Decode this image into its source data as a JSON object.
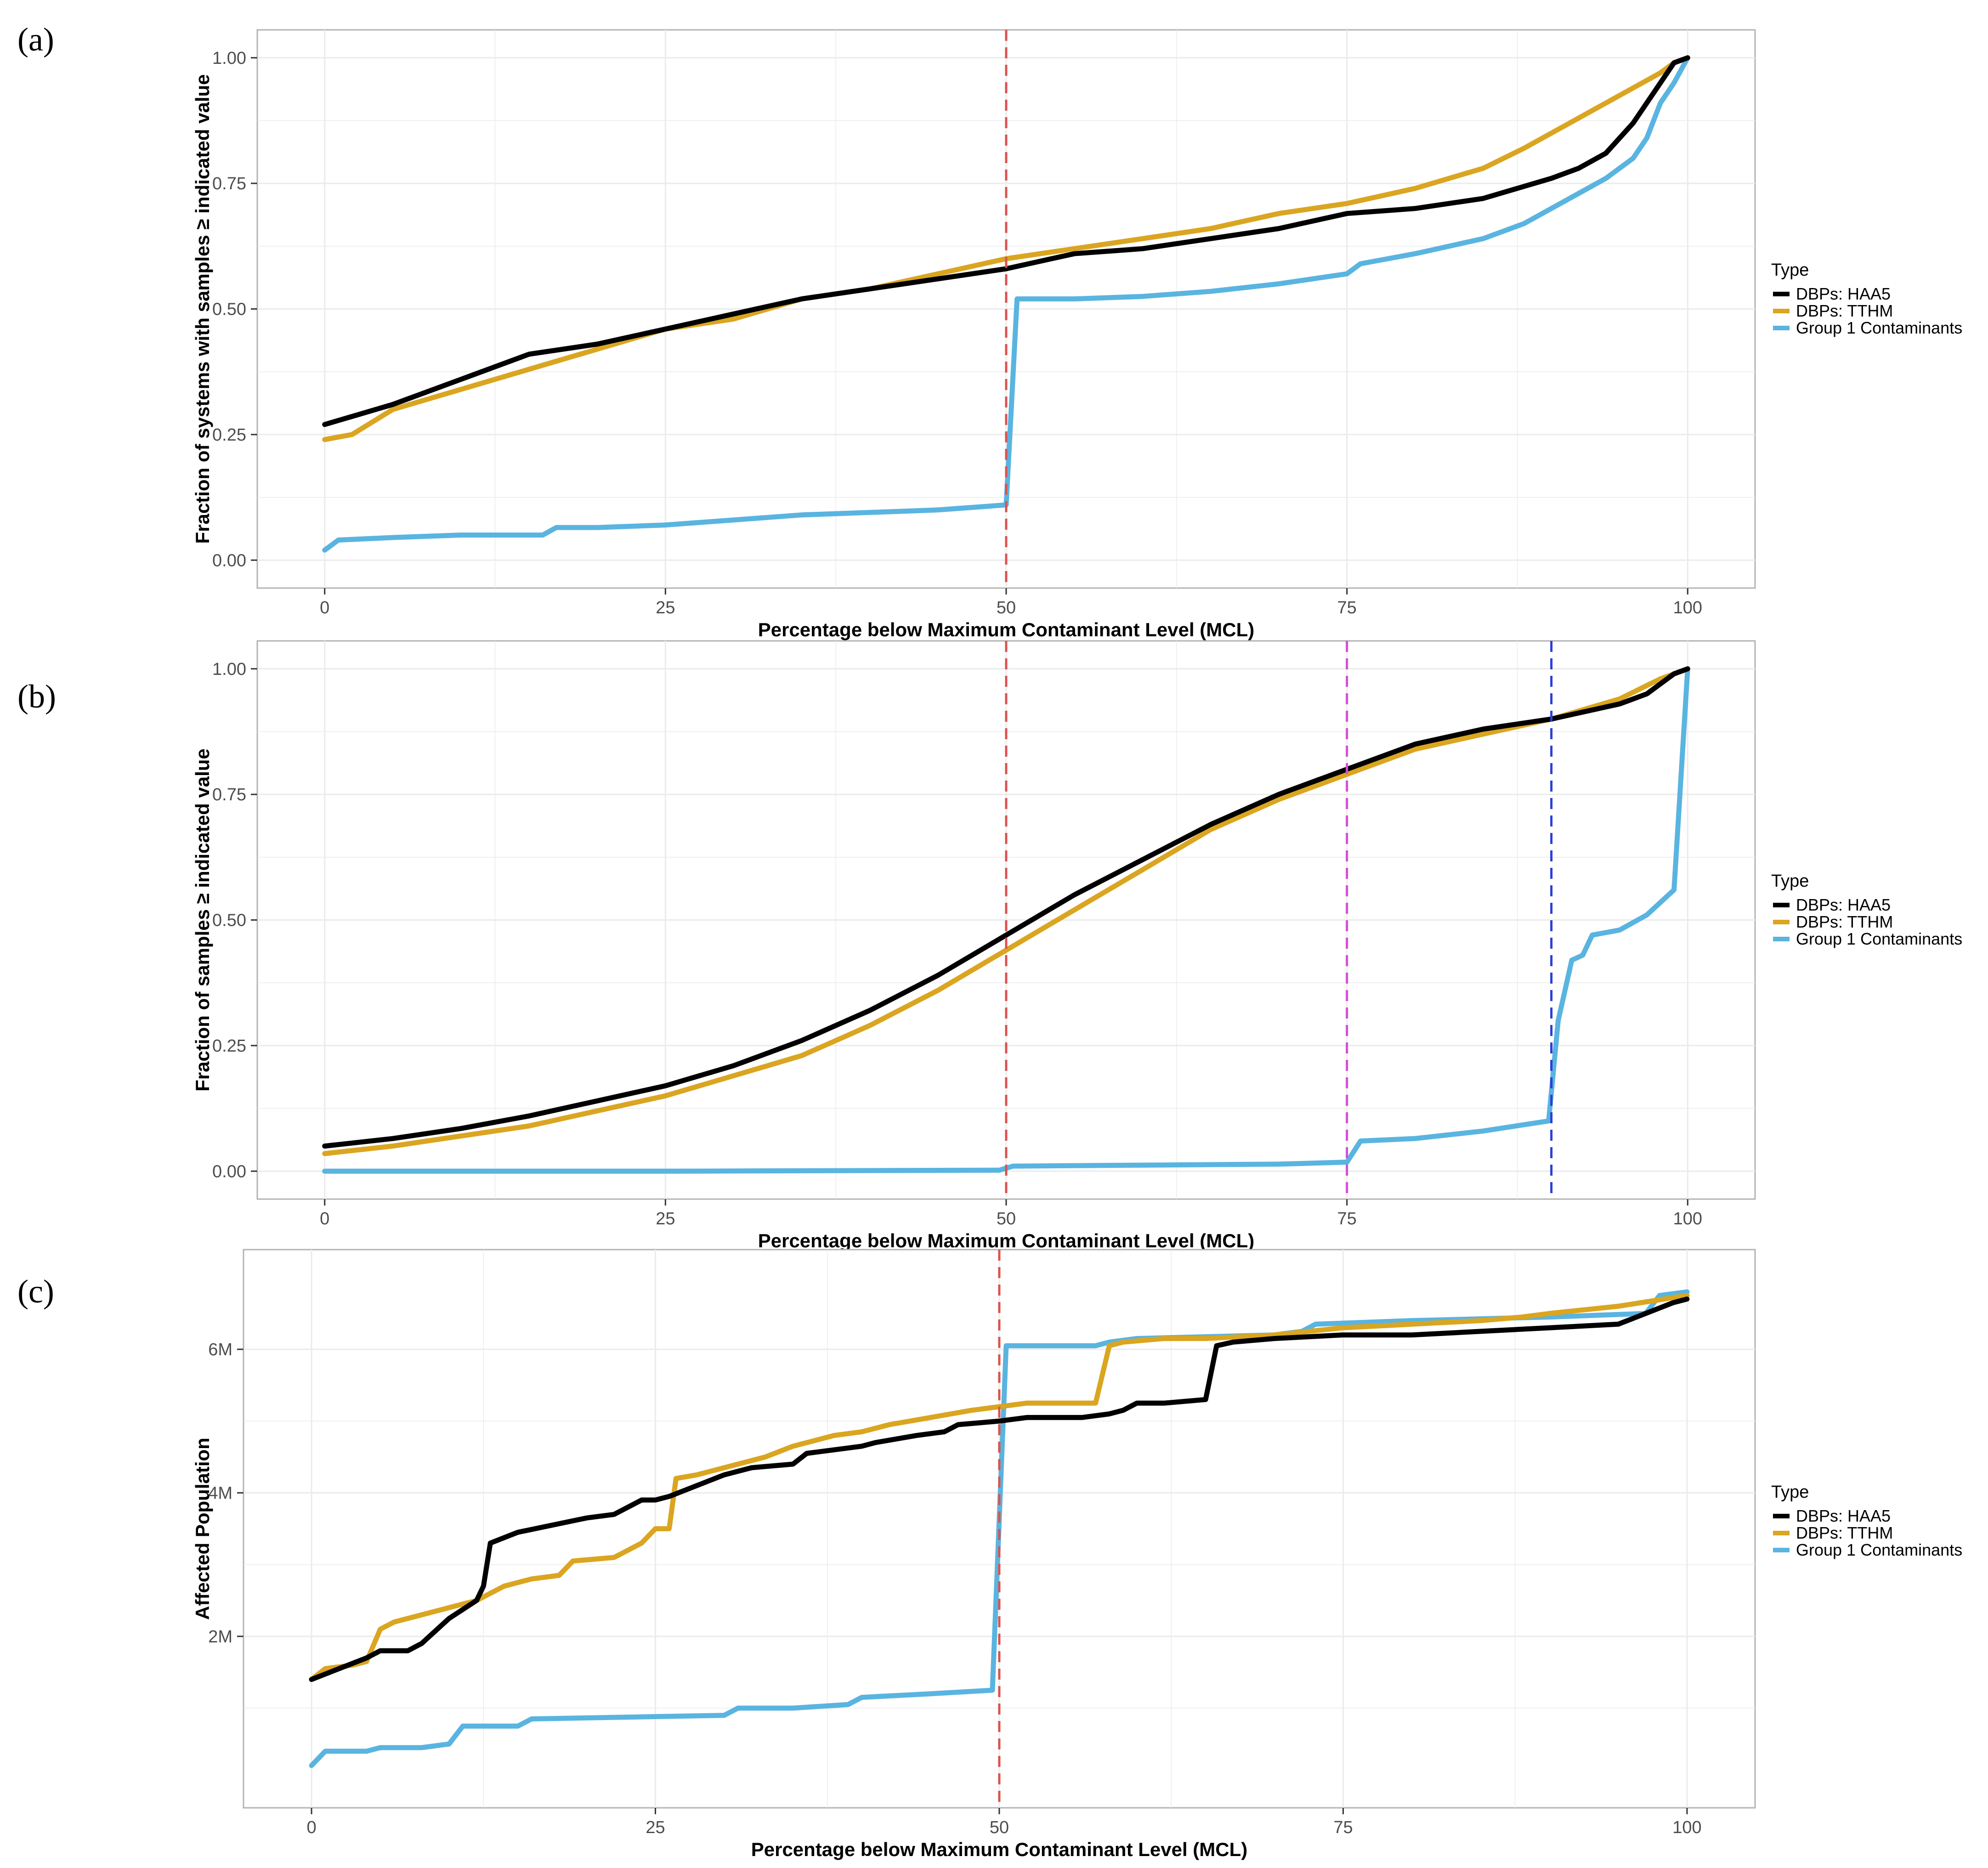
{
  "colors": {
    "haa5": "#000000",
    "tthm": "#DAA520",
    "group1": "#5AB4E0",
    "ref_red": "#D9534F",
    "ref_magenta": "#D44FD6",
    "ref_blue": "#2B3FD6",
    "grid": "#EBEBEB",
    "panel_border": "#B3B3B3"
  },
  "legend": {
    "title": "Type",
    "entries": [
      "DBPs: HAA5",
      "DBPs: TTHM",
      "Group 1 Contaminants"
    ]
  },
  "chart_data": [
    {
      "type": "line",
      "panel_label": "(a)",
      "xlabel": "Percentage below Maximum Contaminant Level (MCL)",
      "ylabel": "Fraction of systems with samples ≥ indicated value",
      "xlim": [
        0,
        100
      ],
      "ylim": [
        0,
        1
      ],
      "xticks": [
        0,
        25,
        50,
        75,
        100
      ],
      "xtick_labels": [
        "0",
        "25",
        "50",
        "75",
        "100"
      ],
      "yticks": [
        0,
        0.25,
        0.5,
        0.75,
        1
      ],
      "ytick_labels": [
        "0.00",
        "0.25",
        "0.50",
        "0.75",
        "1.00"
      ],
      "grid": true,
      "legend_position": "right",
      "vlines": [
        {
          "x": 50,
          "color": "ref_red"
        }
      ],
      "series": [
        {
          "name": "DBPs: HAA5",
          "color": "haa5",
          "x": [
            0,
            5,
            10,
            15,
            20,
            25,
            30,
            35,
            40,
            45,
            50,
            55,
            60,
            65,
            70,
            75,
            80,
            85,
            90,
            92,
            94,
            96,
            98,
            99,
            100
          ],
          "y": [
            0.27,
            0.31,
            0.36,
            0.41,
            0.43,
            0.46,
            0.49,
            0.52,
            0.54,
            0.56,
            0.58,
            0.61,
            0.62,
            0.64,
            0.66,
            0.69,
            0.7,
            0.72,
            0.76,
            0.78,
            0.81,
            0.87,
            0.95,
            0.99,
            1.0
          ]
        },
        {
          "name": "DBPs: TTHM",
          "color": "tthm",
          "x": [
            0,
            2,
            5,
            10,
            15,
            20,
            25,
            30,
            35,
            40,
            45,
            50,
            55,
            60,
            65,
            70,
            75,
            80,
            85,
            88,
            90,
            92,
            94,
            96,
            98,
            99,
            100
          ],
          "y": [
            0.24,
            0.25,
            0.3,
            0.34,
            0.38,
            0.42,
            0.46,
            0.48,
            0.52,
            0.54,
            0.57,
            0.6,
            0.62,
            0.64,
            0.66,
            0.69,
            0.71,
            0.74,
            0.78,
            0.82,
            0.85,
            0.88,
            0.91,
            0.94,
            0.97,
            0.99,
            1.0
          ]
        },
        {
          "name": "Group 1 Contaminants",
          "color": "group1",
          "x": [
            0,
            1,
            5,
            10,
            16,
            17,
            20,
            25,
            30,
            35,
            40,
            45,
            50,
            50.8,
            55,
            60,
            65,
            70,
            75,
            76,
            80,
            85,
            88,
            90,
            92,
            94,
            96,
            97,
            98,
            99,
            100
          ],
          "y": [
            0.02,
            0.04,
            0.045,
            0.05,
            0.05,
            0.065,
            0.065,
            0.07,
            0.08,
            0.09,
            0.095,
            0.1,
            0.11,
            0.52,
            0.52,
            0.525,
            0.535,
            0.55,
            0.57,
            0.59,
            0.61,
            0.64,
            0.67,
            0.7,
            0.73,
            0.76,
            0.8,
            0.84,
            0.91,
            0.95,
            1.0
          ]
        }
      ]
    },
    {
      "type": "line",
      "panel_label": "(b)",
      "xlabel": "Percentage below Maximum Contaminant Level (MCL)",
      "ylabel": "Fraction of samples ≥ indicated value",
      "xlim": [
        0,
        100
      ],
      "ylim": [
        0,
        1
      ],
      "xticks": [
        0,
        25,
        50,
        75,
        100
      ],
      "xtick_labels": [
        "0",
        "25",
        "50",
        "75",
        "100"
      ],
      "yticks": [
        0,
        0.25,
        0.5,
        0.75,
        1
      ],
      "ytick_labels": [
        "0.00",
        "0.25",
        "0.50",
        "0.75",
        "1.00"
      ],
      "grid": true,
      "legend_position": "right",
      "vlines": [
        {
          "x": 50,
          "color": "ref_red"
        },
        {
          "x": 75,
          "color": "ref_magenta"
        },
        {
          "x": 90,
          "color": "ref_blue"
        }
      ],
      "series": [
        {
          "name": "DBPs: HAA5",
          "color": "haa5",
          "x": [
            0,
            5,
            10,
            15,
            20,
            25,
            30,
            35,
            40,
            45,
            50,
            55,
            60,
            65,
            70,
            75,
            80,
            85,
            90,
            95,
            97,
            99,
            100
          ],
          "y": [
            0.05,
            0.065,
            0.085,
            0.11,
            0.14,
            0.17,
            0.21,
            0.26,
            0.32,
            0.39,
            0.47,
            0.55,
            0.62,
            0.69,
            0.75,
            0.8,
            0.85,
            0.88,
            0.9,
            0.93,
            0.95,
            0.99,
            1.0
          ]
        },
        {
          "name": "DBPs: TTHM",
          "color": "tthm",
          "x": [
            0,
            5,
            10,
            15,
            20,
            25,
            30,
            35,
            40,
            45,
            50,
            55,
            60,
            65,
            70,
            75,
            80,
            85,
            90,
            95,
            98,
            100
          ],
          "y": [
            0.035,
            0.05,
            0.07,
            0.09,
            0.12,
            0.15,
            0.19,
            0.23,
            0.29,
            0.36,
            0.44,
            0.52,
            0.6,
            0.68,
            0.74,
            0.79,
            0.84,
            0.87,
            0.9,
            0.94,
            0.98,
            1.0
          ]
        },
        {
          "name": "Group 1 Contaminants",
          "color": "group1",
          "x": [
            0,
            25,
            49.5,
            50.5,
            60,
            70,
            75,
            76,
            80,
            85,
            89.8,
            90.5,
            91.5,
            92.3,
            93,
            95,
            97,
            99,
            100
          ],
          "y": [
            0,
            0,
            0.002,
            0.01,
            0.012,
            0.014,
            0.018,
            0.06,
            0.065,
            0.08,
            0.1,
            0.3,
            0.42,
            0.43,
            0.47,
            0.48,
            0.51,
            0.56,
            1.0
          ]
        }
      ]
    },
    {
      "type": "line",
      "panel_label": "(c)",
      "xlabel": "Percentage below Maximum Contaminant Level (MCL)",
      "ylabel": "Affected Population",
      "xlim": [
        0,
        100
      ],
      "ylim": [
        0,
        7000000
      ],
      "xticks": [
        0,
        25,
        50,
        75,
        100
      ],
      "xtick_labels": [
        "0",
        "25",
        "50",
        "75",
        "100"
      ],
      "yticks": [
        2000000,
        4000000,
        6000000
      ],
      "ytick_labels": [
        "2M",
        "4M",
        "6M"
      ],
      "grid": true,
      "legend_position": "right",
      "vlines": [
        {
          "x": 50,
          "color": "ref_red"
        }
      ],
      "series": [
        {
          "name": "DBPs: HAA5",
          "color": "haa5",
          "x": [
            0,
            2,
            4,
            5,
            7,
            8,
            10,
            12,
            12.5,
            13,
            15,
            20,
            22,
            24,
            25,
            26,
            28,
            30,
            32,
            35,
            36,
            40,
            41,
            44,
            46,
            47,
            50,
            52,
            56,
            58,
            59,
            60,
            62,
            65,
            65.8,
            67,
            70,
            75,
            80,
            85,
            90,
            95,
            97,
            99,
            100
          ],
          "y": [
            1400000,
            1550000,
            1700000,
            1800000,
            1800000,
            1900000,
            2250000,
            2500000,
            2700000,
            3300000,
            3450000,
            3650000,
            3700000,
            3900000,
            3900000,
            3950000,
            4100000,
            4250000,
            4350000,
            4400000,
            4550000,
            4650000,
            4700000,
            4800000,
            4850000,
            4950000,
            5000000,
            5050000,
            5050000,
            5100000,
            5150000,
            5250000,
            5250000,
            5300000,
            6050000,
            6100000,
            6150000,
            6200000,
            6200000,
            6250000,
            6300000,
            6350000,
            6500000,
            6650000,
            6700000
          ]
        },
        {
          "name": "DBPs: TTHM",
          "color": "tthm",
          "x": [
            0,
            1,
            3,
            4,
            5,
            6,
            8,
            10,
            12,
            14,
            16,
            18,
            19,
            22,
            24,
            25,
            26,
            26.5,
            28,
            30,
            33,
            35,
            38,
            40,
            42,
            45,
            48,
            50,
            52,
            57,
            58,
            59,
            62,
            65,
            70,
            75,
            80,
            85,
            88,
            90,
            95,
            100
          ],
          "y": [
            1400000,
            1550000,
            1600000,
            1650000,
            2100000,
            2200000,
            2300000,
            2400000,
            2500000,
            2700000,
            2800000,
            2850000,
            3050000,
            3100000,
            3300000,
            3500000,
            3500000,
            4200000,
            4250000,
            4350000,
            4500000,
            4650000,
            4800000,
            4850000,
            4950000,
            5050000,
            5150000,
            5200000,
            5250000,
            5250000,
            6050000,
            6100000,
            6150000,
            6150000,
            6200000,
            6300000,
            6350000,
            6400000,
            6450000,
            6500000,
            6600000,
            6750000
          ]
        },
        {
          "name": "Group 1 Contaminants",
          "color": "group1",
          "x": [
            0,
            1,
            4,
            5,
            8,
            10,
            11,
            15,
            16,
            30,
            31,
            35,
            39,
            40,
            45,
            49.5,
            50.5,
            52,
            57,
            58,
            60,
            70,
            72,
            73,
            80,
            90,
            97,
            98,
            100
          ],
          "y": [
            200000,
            400000,
            400000,
            450000,
            450000,
            500000,
            750000,
            750000,
            850000,
            900000,
            1000000,
            1000000,
            1050000,
            1150000,
            1200000,
            1250000,
            6050000,
            6050000,
            6050000,
            6100000,
            6150000,
            6200000,
            6250000,
            6350000,
            6400000,
            6450000,
            6500000,
            6750000,
            6800000
          ]
        }
      ]
    }
  ]
}
